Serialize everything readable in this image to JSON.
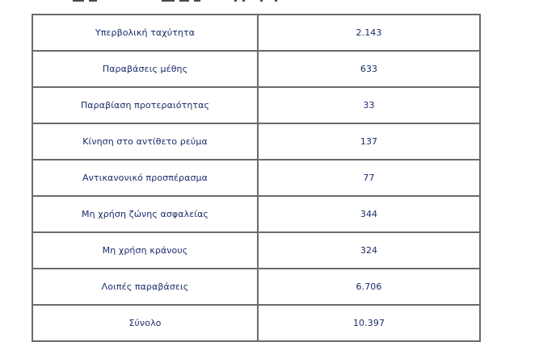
{
  "table": {
    "rows": [
      {
        "label": "Υπερβολική ταχύτητα",
        "value": "2.143"
      },
      {
        "label": "Παραβάσεις μέθης",
        "value": "633"
      },
      {
        "label": "Παραβίαση προτεραιότητας",
        "value": "33"
      },
      {
        "label": "Κίνηση στο αντίθετο ρεύμα",
        "value": "137"
      },
      {
        "label": "Αντικανονικό προσπέρασμα",
        "value": "77"
      },
      {
        "label": "Μη χρήση ζώνης ασφαλείας",
        "value": "344"
      },
      {
        "label": "Μη χρήση κράνους",
        "value": "324"
      },
      {
        "label": "Λοιπές παραβάσεις",
        "value": "6.706"
      },
      {
        "label": "Σύνολο",
        "value": "10.397"
      }
    ]
  }
}
